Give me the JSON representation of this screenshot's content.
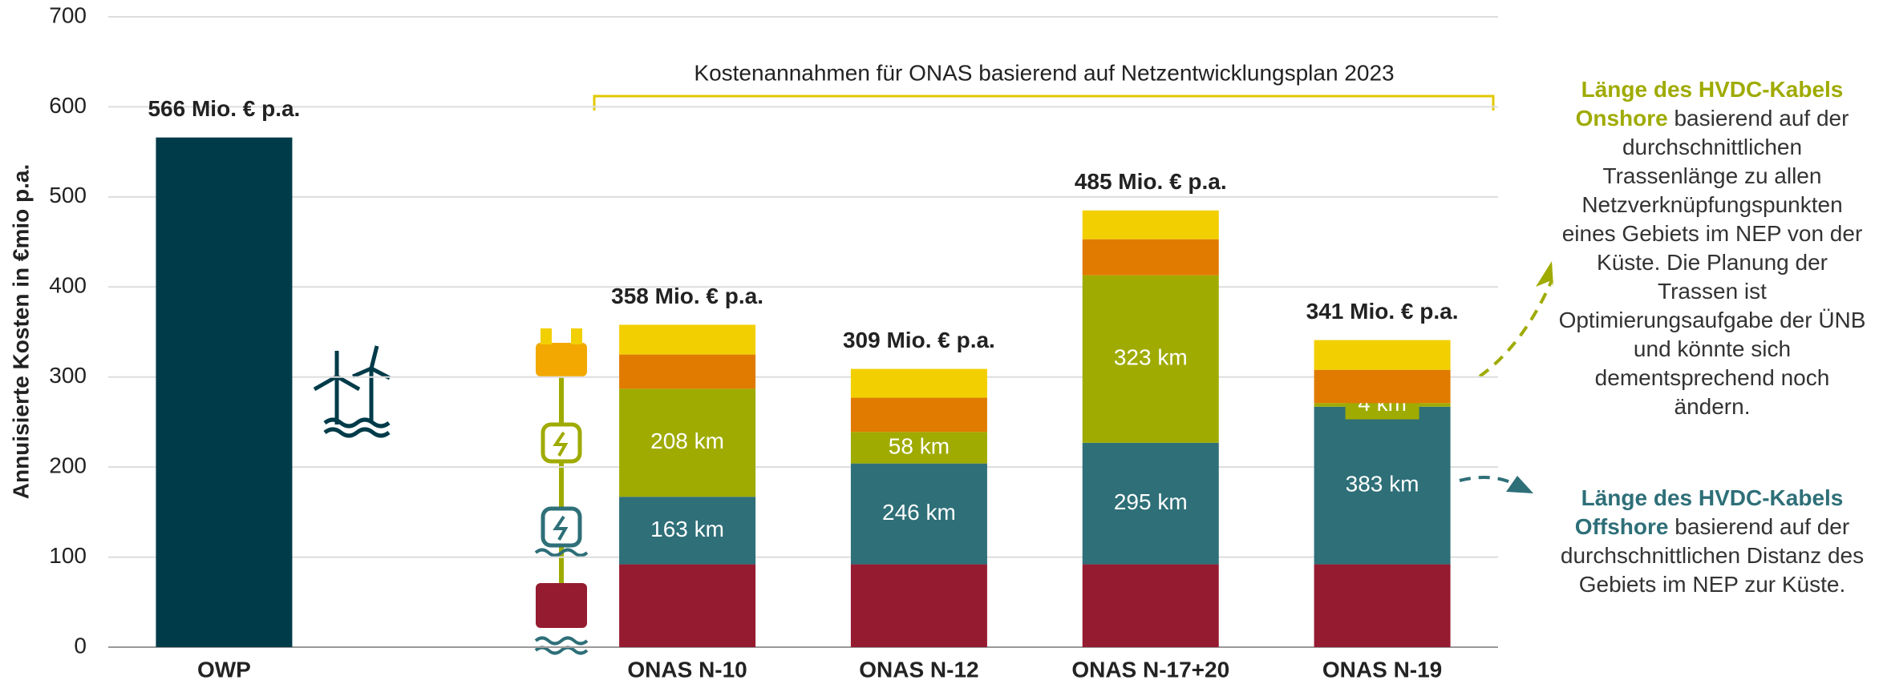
{
  "chart_data": {
    "type": "stacked_bar",
    "annotation": "Kostenannahmen für ONAS basierend auf Netzentwicklungsplan 2023",
    "y_label": "Annuisierte Kosten in €mio p.a.",
    "categories": [
      "OWP",
      "ONAS N-10",
      "ONAS N-12",
      "ONAS N-17+20",
      "ONAS N-19"
    ],
    "ylim": [
      0,
      700
    ],
    "yticks": [
      0,
      100,
      200,
      300,
      400,
      500,
      600,
      700
    ],
    "grid": true,
    "series": [
      {
        "color": "#003b49",
        "values": [
          566,
          null,
          null,
          null,
          null
        ]
      },
      {
        "color": "#951b30",
        "values": [
          null,
          92,
          92,
          92,
          92
        ]
      },
      {
        "color": "#2e6f78",
        "values": [
          null,
          75,
          112,
          135,
          175
        ],
        "labels": [
          null,
          "163 km",
          "246 km",
          "295 km",
          "383 km"
        ]
      },
      {
        "color": "#9fab00",
        "values": [
          null,
          120,
          35,
          186,
          4
        ],
        "labels": [
          null,
          "208 km",
          "58 km",
          "323 km",
          "4 km"
        ]
      },
      {
        "color": "#e07b00",
        "values": [
          null,
          38,
          38,
          40,
          37
        ]
      },
      {
        "color": "#f2cf00",
        "values": [
          null,
          33,
          32,
          32,
          33
        ]
      }
    ],
    "totals": [
      566,
      358,
      309,
      485,
      341
    ],
    "value_labels": [
      "566 Mio. € p.a.",
      "358 Mio. € p.a.",
      "309 Mio. € p.a.",
      "485 Mio. € p.a.",
      "341 Mio. € p.a."
    ],
    "notes": [
      {
        "highlight_1": "Länge des HVDC-Kabels",
        "highlight_2": "Onshore",
        "text": "basierend auf der durchschnittlichen Trassenlänge zu allen Netzverknüpfungspunkten eines Gebiets im NEP von der Küste. Die Planung der Trassen ist Optimierungsaufgabe der ÜNB und könnte sich dementsprechend noch ändern."
      },
      {
        "highlight_1": "Länge des HVDC-Kabels",
        "highlight_2": "Offshore",
        "text": "basierend auf der durchschnittlichen Distanz des Gebiets im NEP zur Küste."
      }
    ]
  }
}
